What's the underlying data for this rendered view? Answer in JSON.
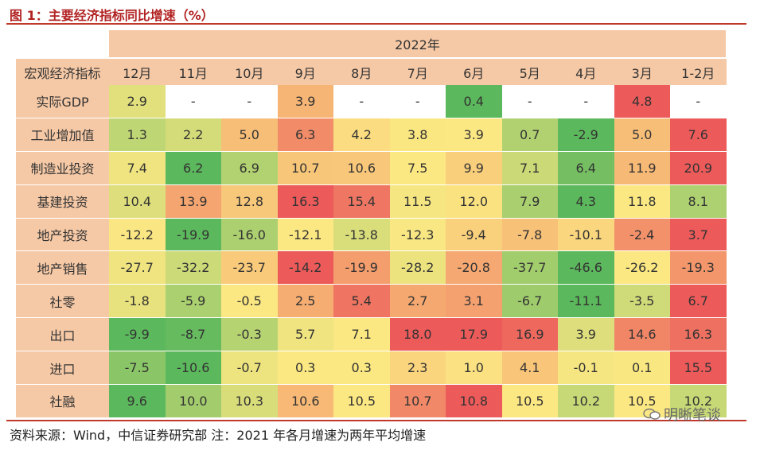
{
  "title": "图 1：主要经济指标同比增速（%）",
  "source": "资料来源：Wind，中信证券研究部 注：2021 年各月增速为两年平均增速",
  "watermark": "明晰笔谈",
  "chart_data": {
    "type": "heatmap",
    "year_label": "2022年",
    "corner_label": "宏观经济指标",
    "columns": [
      "12月",
      "11月",
      "10月",
      "9月",
      "8月",
      "7月",
      "6月",
      "5月",
      "4月",
      "3月",
      "1-2月"
    ],
    "rows": [
      {
        "name": "实际GDP",
        "values": [
          "2.9",
          "-",
          "-",
          "3.9",
          "-",
          "-",
          "0.4",
          "-",
          "-",
          "4.8",
          "-"
        ]
      },
      {
        "name": "工业增加值",
        "values": [
          "1.3",
          "2.2",
          "5.0",
          "6.3",
          "4.2",
          "3.8",
          "3.9",
          "0.7",
          "-2.9",
          "5.0",
          "7.6"
        ]
      },
      {
        "name": "制造业投资",
        "values": [
          "7.4",
          "6.2",
          "6.9",
          "10.7",
          "10.6",
          "7.5",
          "9.9",
          "7.1",
          "6.4",
          "11.9",
          "20.9"
        ]
      },
      {
        "name": "基建投资",
        "values": [
          "10.4",
          "13.9",
          "12.8",
          "16.3",
          "15.4",
          "11.5",
          "12.0",
          "7.9",
          "4.3",
          "11.8",
          "8.1"
        ]
      },
      {
        "name": "地产投资",
        "values": [
          "-12.2",
          "-19.9",
          "-16.0",
          "-12.1",
          "-13.8",
          "-12.3",
          "-9.4",
          "-7.8",
          "-10.1",
          "-2.4",
          "3.7"
        ]
      },
      {
        "name": "地产销售",
        "values": [
          "-27.7",
          "-32.2",
          "-23.7",
          "-14.2",
          "-19.9",
          "-28.2",
          "-20.8",
          "-37.7",
          "-46.6",
          "-26.2",
          "-19.3"
        ]
      },
      {
        "name": "社零",
        "values": [
          "-1.8",
          "-5.9",
          "-0.5",
          "2.5",
          "5.4",
          "2.7",
          "3.1",
          "-6.7",
          "-11.1",
          "-3.5",
          "6.7"
        ]
      },
      {
        "name": "出口",
        "values": [
          "-9.9",
          "-8.7",
          "-0.3",
          "5.7",
          "7.1",
          "18.0",
          "17.9",
          "16.9",
          "3.9",
          "14.6",
          "16.3"
        ]
      },
      {
        "name": "进口",
        "values": [
          "-7.5",
          "-10.6",
          "-0.7",
          "0.3",
          "0.3",
          "2.3",
          "1.0",
          "4.1",
          "-0.1",
          "0.1",
          "15.5"
        ]
      },
      {
        "name": "社融",
        "values": [
          "9.6",
          "10.0",
          "10.3",
          "10.6",
          "10.5",
          "10.7",
          "10.8",
          "10.5",
          "10.2",
          "10.5",
          "10.2"
        ]
      }
    ],
    "color_scale": {
      "low": "#5cb85c",
      "mid": "#fce883",
      "high": "#ec5a5a",
      "missing": "#ffffff"
    }
  }
}
